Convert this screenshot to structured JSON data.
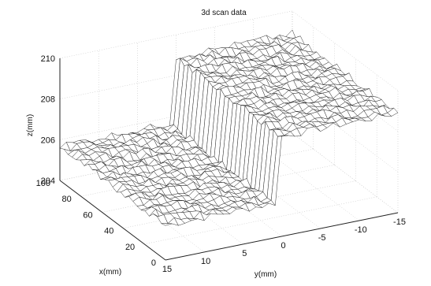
{
  "chart_data": {
    "type": "surface",
    "title": "3d scan data",
    "xlabel": "x(mm)",
    "ylabel": "y(mm)",
    "zlabel": "z(mm)",
    "xlim": [
      0,
      100
    ],
    "ylim": [
      -15,
      15
    ],
    "zlim": [
      204,
      210
    ],
    "x_ticks": [
      "0",
      "20",
      "40",
      "60",
      "80",
      "100"
    ],
    "y_ticks": [
      "15",
      "10",
      "5",
      "0",
      "-5",
      "-10",
      "-15"
    ],
    "z_ticks": [
      "204",
      "206",
      "208",
      "210"
    ],
    "x_tick_values": [
      0,
      20,
      40,
      60,
      80,
      100
    ],
    "y_tick_values": [
      15,
      10,
      5,
      0,
      -5,
      -10,
      -15
    ],
    "z_tick_values": [
      204,
      206,
      208,
      210
    ],
    "surface": {
      "description_type": "step",
      "low_level": 205.7,
      "high_level": 208.9,
      "step_at_y": 0,
      "y_extent": [
        -15,
        15
      ],
      "x_extent": [
        0,
        100
      ]
    },
    "grid": true,
    "colors": {
      "mesh": "#1a1a1a",
      "axes": "#222222"
    }
  }
}
